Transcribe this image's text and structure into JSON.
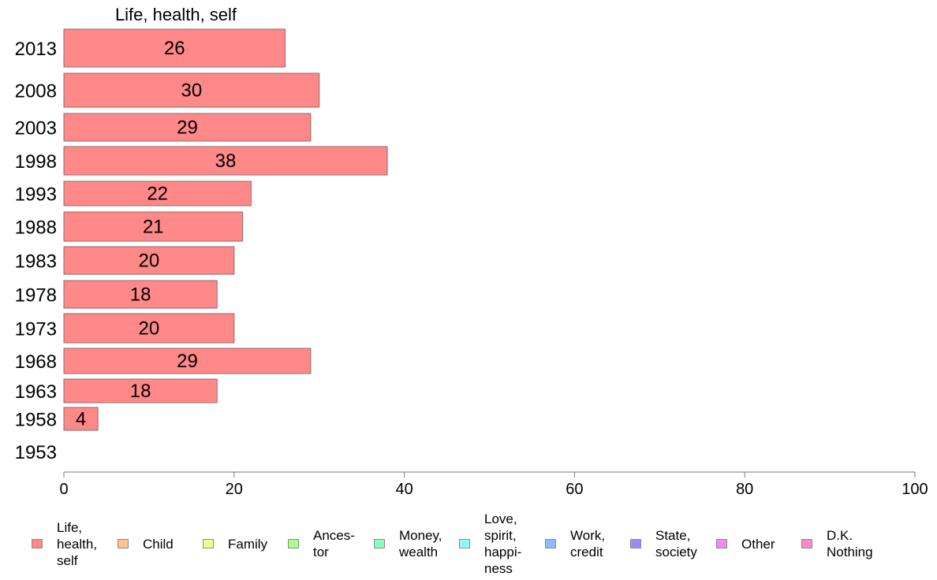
{
  "chart_data": {
    "type": "bar",
    "orientation": "horizontal",
    "stacked": true,
    "title": "Life, health, self",
    "categories": [
      "2013",
      "2008",
      "2003",
      "1998",
      "1993",
      "1988",
      "1983",
      "1978",
      "1973",
      "1968",
      "1963",
      "1958",
      "1953"
    ],
    "series": [
      {
        "name": "Life, health, self",
        "color": "#ff8888",
        "values": [
          26,
          30,
          29,
          38,
          22,
          21,
          20,
          18,
          20,
          29,
          18,
          4,
          null
        ],
        "value_labels": [
          "26",
          "30",
          "29",
          "38",
          "22",
          "21",
          "20",
          "18",
          "20",
          "29",
          "18",
          "4",
          ""
        ]
      }
    ],
    "xlim": [
      0,
      100
    ],
    "xticks": [
      "0",
      "20",
      "40",
      "60",
      "80",
      "100"
    ],
    "grid": false,
    "legend": {
      "position": "bottom",
      "items": [
        {
          "label": "Life,\nhealth,\nself",
          "color": "#ff8888"
        },
        {
          "label": "Child",
          "color": "#ffc688"
        },
        {
          "label": "Family",
          "color": "#eeff88"
        },
        {
          "label": "Ances-\ntor",
          "color": "#a6ff88"
        },
        {
          "label": "Money,\nwealth",
          "color": "#88ffbb"
        },
        {
          "label": "Love,\nspirit,\nhappi-\nness",
          "color": "#88ffff"
        },
        {
          "label": "Work,\ncredit",
          "color": "#88bbff"
        },
        {
          "label": "State,\nsociety",
          "color": "#a088ff"
        },
        {
          "label": "Other",
          "color": "#ee88ff"
        },
        {
          "label": "D.K.\nNothing",
          "color": "#ff88cc"
        }
      ]
    }
  }
}
